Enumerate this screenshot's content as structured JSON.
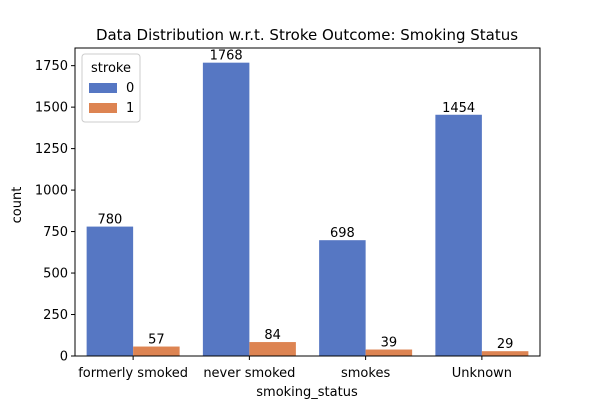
{
  "chart_data": {
    "type": "bar",
    "title": "Data Distribution w.r.t. Stroke Outcome: Smoking Status",
    "xlabel": "smoking_status",
    "ylabel": "count",
    "categories": [
      "formerly smoked",
      "never smoked",
      "smokes",
      "Unknown"
    ],
    "series": [
      {
        "name": "0",
        "values": [
          780,
          1768,
          698,
          1454
        ],
        "color": "#5677C3"
      },
      {
        "name": "1",
        "values": [
          57,
          84,
          39,
          29
        ],
        "color": "#DD8452"
      }
    ],
    "ylim": [
      0,
      1856.4
    ],
    "yticks": [
      0,
      250,
      500,
      750,
      1000,
      1250,
      1500,
      1750
    ],
    "legend": {
      "title": "stroke",
      "placement": "top-left"
    },
    "grid": false
  }
}
